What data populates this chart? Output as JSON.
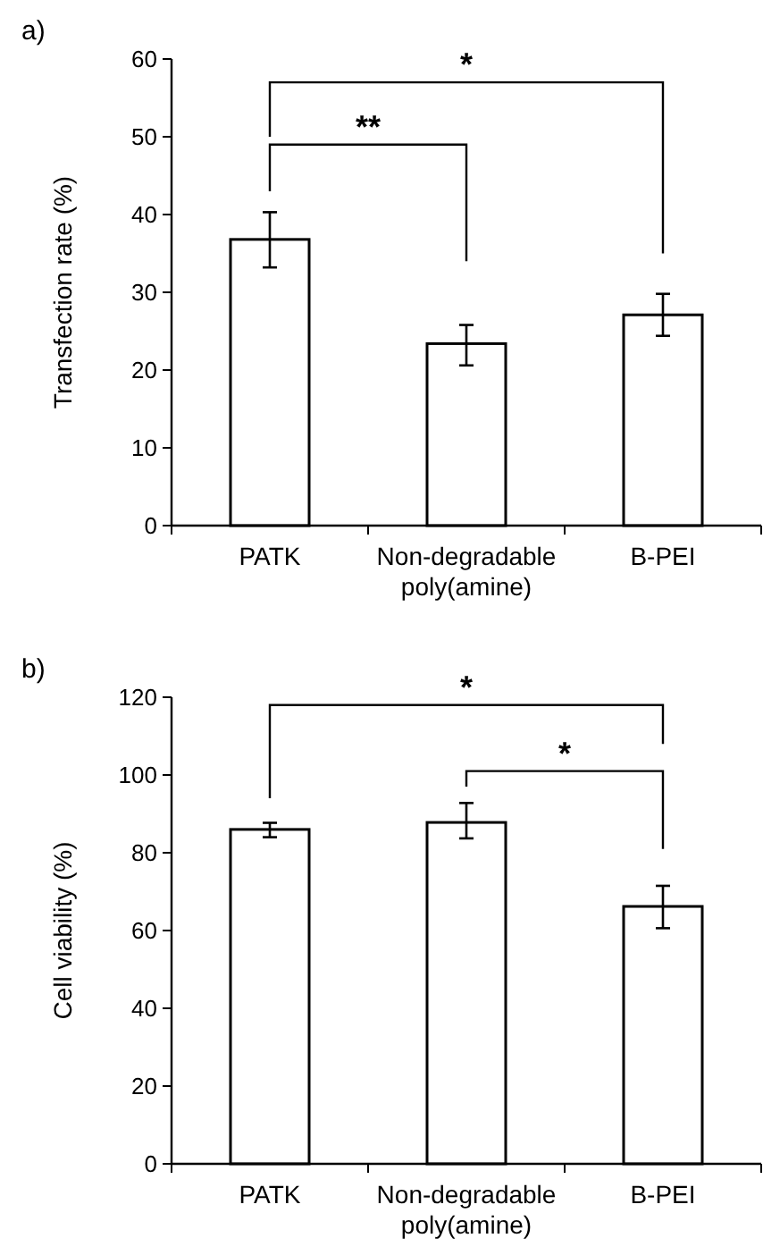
{
  "chart_data": [
    {
      "type": "bar",
      "title": "a)",
      "ylabel": "Transfection rate (%)",
      "categories": [
        "PATK",
        "Non-degradable poly(amine)",
        "B-PEI"
      ],
      "values": [
        36.8,
        23.4,
        27.1
      ],
      "errors": [
        [
          33.2,
          40.3
        ],
        [
          20.6,
          25.8
        ],
        [
          24.4,
          29.8
        ]
      ],
      "color": "#ffffff",
      "ylim": [
        0,
        60
      ],
      "yticks": [
        0,
        10,
        20,
        30,
        40,
        50,
        60
      ],
      "grid": false,
      "annotations": [
        "**",
        "*"
      ]
    },
    {
      "type": "bar",
      "title": "b)",
      "ylabel": "Cell viability (%)",
      "categories": [
        "PATK",
        "Non-degradable poly(amine)",
        "B-PEI"
      ],
      "values": [
        86,
        87.8,
        66.2
      ],
      "errors": [
        [
          84,
          87.7
        ],
        [
          83.7,
          92.8
        ],
        [
          60.6,
          71.5
        ]
      ],
      "color": "#ffffff",
      "ylim": [
        0,
        120
      ],
      "yticks": [
        0,
        20,
        40,
        60,
        80,
        100,
        120
      ],
      "grid": false,
      "annotations": [
        "*",
        "*"
      ]
    }
  ]
}
